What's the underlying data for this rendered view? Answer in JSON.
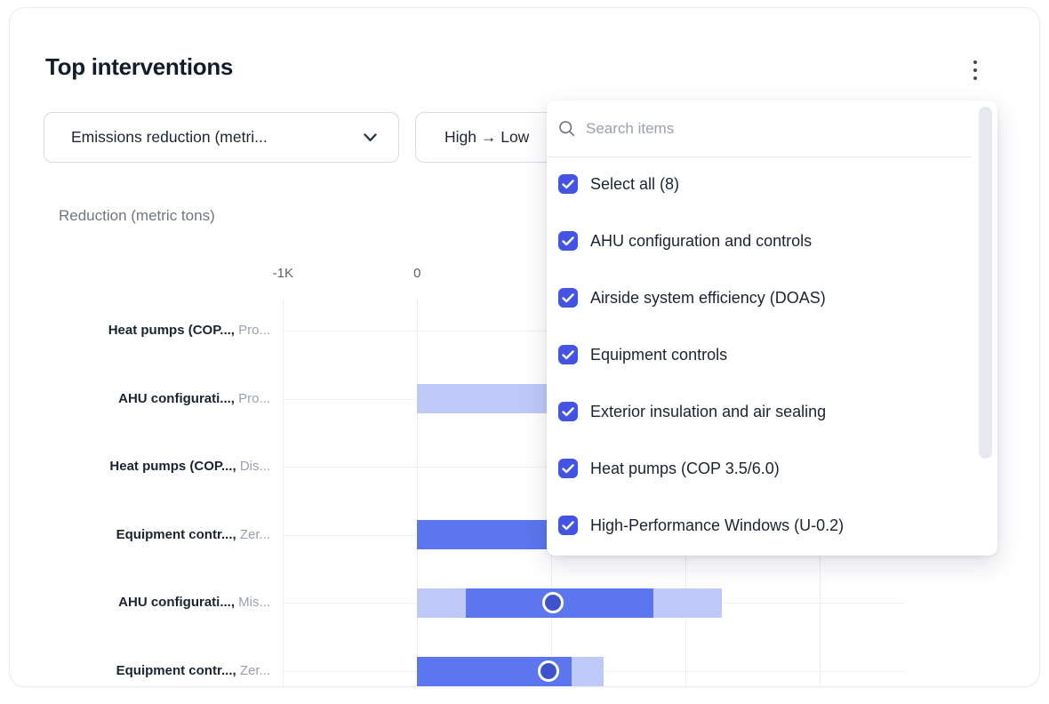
{
  "card": {
    "title": "Top interventions"
  },
  "filters": {
    "metric_dropdown": {
      "label": "Emissions reduction (metri..."
    },
    "sort_dropdown": {
      "label": "High → Low"
    }
  },
  "dropdown_panel": {
    "search_placeholder": "Search items",
    "items": [
      {
        "label": "Select all (8)",
        "checked": true
      },
      {
        "label": "AHU configuration and controls",
        "checked": true
      },
      {
        "label": "Airside system efficiency (DOAS)",
        "checked": true
      },
      {
        "label": "Equipment controls",
        "checked": true
      },
      {
        "label": "Exterior insulation and air sealing",
        "checked": true
      },
      {
        "label": "Heat pumps (COP 3.5/6.0)",
        "checked": true
      },
      {
        "label": "High-Performance Windows (U-0.2)",
        "checked": true
      }
    ]
  },
  "colors": {
    "accent_blue": "#4353e3",
    "bar_dark": "#5b76ee",
    "bar_light": "#bfc9f8",
    "marker_fill": "#3d53cc"
  },
  "chart_data": {
    "type": "bar",
    "subtype": "horizontal-range-bars",
    "title": "Reduction (metric tons)",
    "x_axis": {
      "gridline_values": [
        -1000,
        0,
        1000,
        2000,
        3000
      ],
      "tick_labels": [
        {
          "value": -1000,
          "label": "-1K"
        },
        {
          "value": 0,
          "label": "0"
        }
      ]
    },
    "rows": [
      {
        "label_primary": "Heat pumps (COP...,",
        "label_secondary": "Pro...",
        "segments": [],
        "marker": null
      },
      {
        "label_primary": "AHU configurati...,",
        "label_secondary": "Pro...",
        "segments": [
          {
            "from": 0,
            "to": 1500,
            "shade": "light"
          }
        ],
        "marker": null
      },
      {
        "label_primary": "Heat pumps (COP...,",
        "label_secondary": "Dis...",
        "segments": [],
        "marker": null
      },
      {
        "label_primary": "Equipment contr...,",
        "label_secondary": "Zer...",
        "segments": [
          {
            "from": 0,
            "to": 1400,
            "shade": "dark"
          }
        ],
        "marker": null
      },
      {
        "label_primary": "AHU configurati...,",
        "label_secondary": "Mis...",
        "segments": [
          {
            "from": 0,
            "to": 360,
            "shade": "light"
          },
          {
            "from": 360,
            "to": 1760,
            "shade": "dark"
          },
          {
            "from": 1760,
            "to": 2270,
            "shade": "light"
          }
        ],
        "marker": 1010
      },
      {
        "label_primary": "Equipment contr...,",
        "label_secondary": "Zer...",
        "segments": [
          {
            "from": 0,
            "to": 1150,
            "shade": "dark"
          },
          {
            "from": 1150,
            "to": 1390,
            "shade": "light"
          }
        ],
        "marker": 980
      }
    ]
  }
}
